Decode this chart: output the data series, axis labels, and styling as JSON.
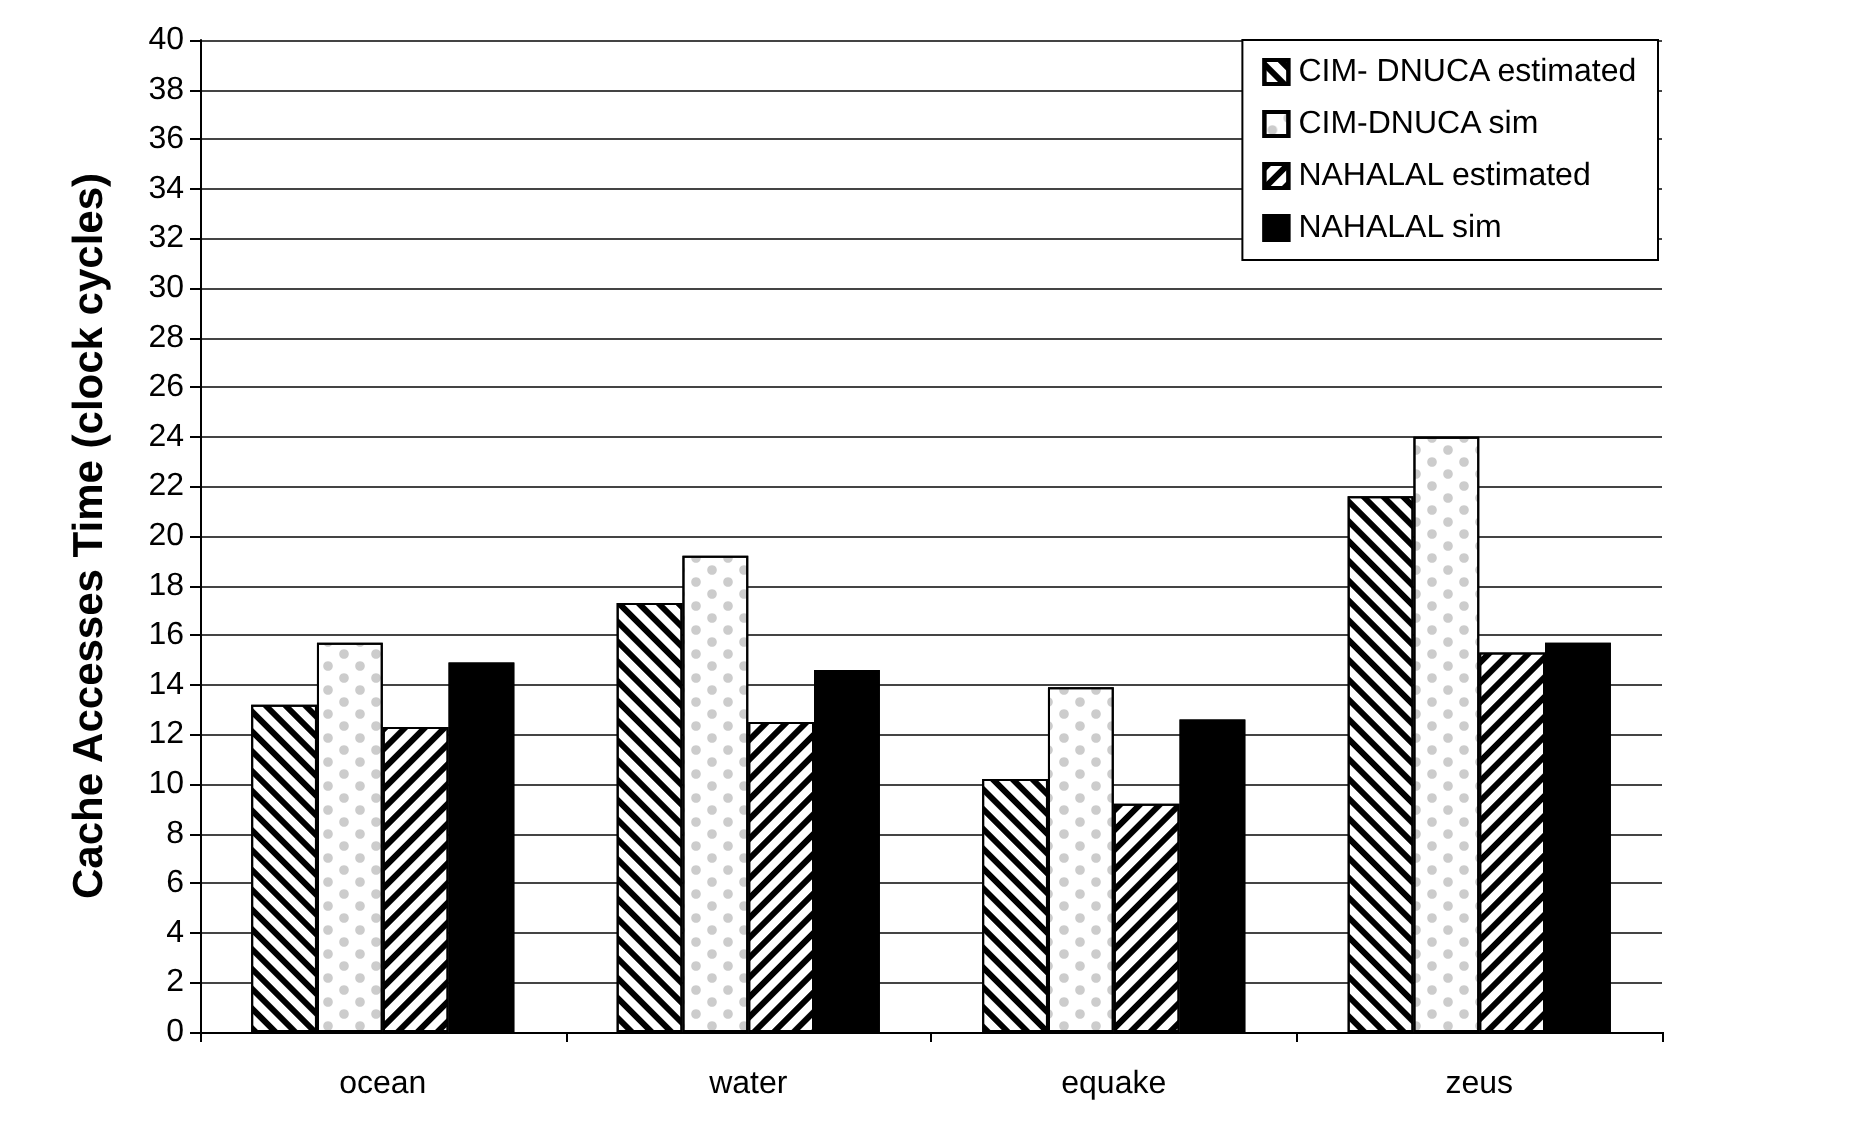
{
  "chart_data": {
    "type": "bar",
    "ylabel": "Cache Accesses Time (clock cycles)",
    "categories": [
      "ocean",
      "water",
      "equake",
      "zeus"
    ],
    "series": [
      {
        "name": "CIM- DNUCA estimated",
        "color": "#ffffff",
        "values": [
          13.2,
          17.3,
          10.2,
          21.6
        ]
      },
      {
        "name": "CIM-DNUCA sim",
        "color": "#ffffff",
        "values": [
          15.7,
          19.2,
          13.9,
          24.0
        ]
      },
      {
        "name": "NAHALAL estimated",
        "color": "#ffffff",
        "values": [
          12.3,
          12.5,
          9.2,
          15.3
        ]
      },
      {
        "name": "NAHALAL sim",
        "color": "#000000",
        "values": [
          14.9,
          14.6,
          12.6,
          15.7
        ]
      }
    ],
    "ylim": [
      0,
      40
    ],
    "yticks": [
      0,
      2,
      4,
      6,
      8,
      10,
      12,
      14,
      16,
      18,
      20,
      22,
      24,
      26,
      28,
      30,
      32,
      34,
      36,
      38,
      40
    ],
    "grid": "y",
    "legend": "top right"
  }
}
